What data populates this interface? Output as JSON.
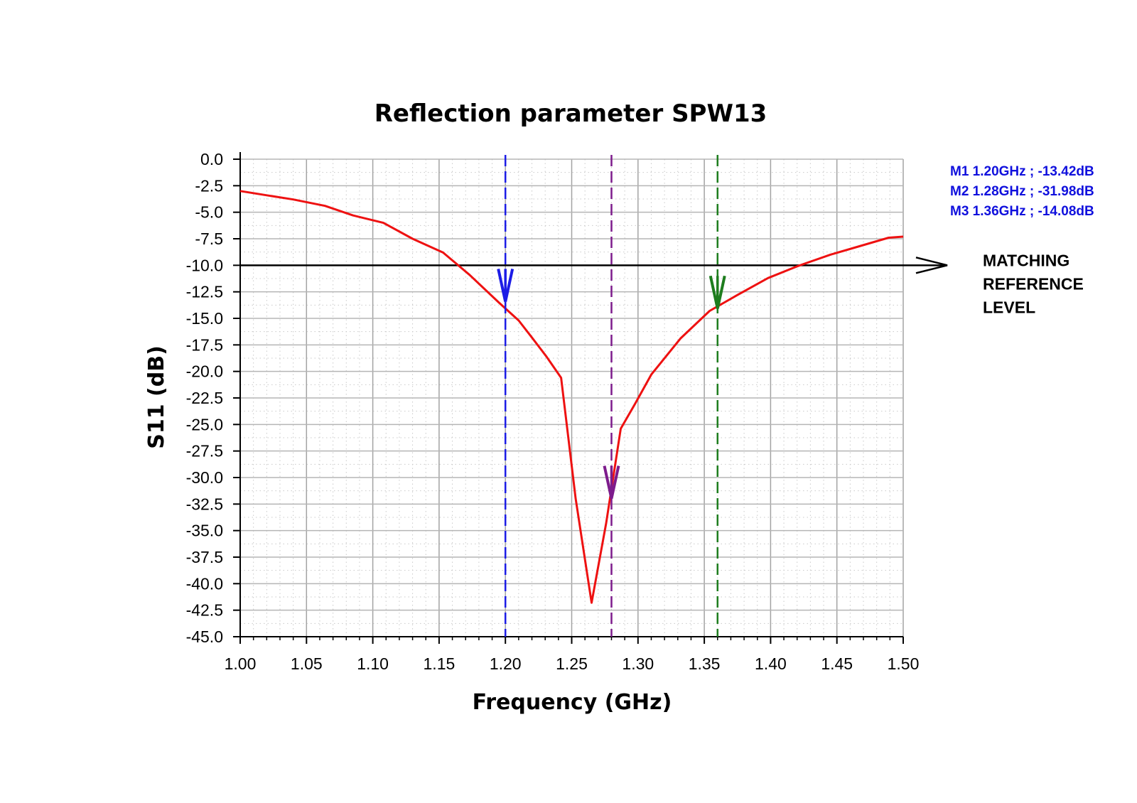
{
  "chart_data": {
    "type": "line",
    "title": "Reflection parameter SPW13",
    "xlabel": "Frequency (GHz)",
    "ylabel": "S11 (dB)",
    "xlim": [
      1.0,
      1.5
    ],
    "ylim": [
      -45.0,
      0.0
    ],
    "x_ticks": [
      "1.00",
      "1.05",
      "1.10",
      "1.15",
      "1.20",
      "1.25",
      "1.30",
      "1.35",
      "1.40",
      "1.45",
      "1.50"
    ],
    "y_ticks": [
      "0.0",
      "-2.5",
      "-5.0",
      "-7.5",
      "-10.0",
      "-12.5",
      "-15.0",
      "-17.5",
      "-20.0",
      "-22.5",
      "-25.0",
      "-27.5",
      "-30.0",
      "-32.5",
      "-35.0",
      "-37.5",
      "-40.0",
      "-42.5",
      "-45.0"
    ],
    "grid": true,
    "series": [
      {
        "color": "#ee1111",
        "x": [
          1.0,
          1.02,
          1.04,
          1.064,
          1.085,
          1.108,
          1.13,
          1.153,
          1.173,
          1.195,
          1.21,
          1.22,
          1.231,
          1.242,
          1.253,
          1.265,
          1.276,
          1.287,
          1.298,
          1.31,
          1.332,
          1.354,
          1.375,
          1.398,
          1.42,
          1.445,
          1.467,
          1.489,
          1.5
        ],
        "y": [
          -3.0,
          -3.4,
          -3.8,
          -4.4,
          -5.3,
          -6.0,
          -7.5,
          -8.8,
          -10.9,
          -13.5,
          -15.2,
          -16.8,
          -18.6,
          -20.6,
          -32.0,
          -41.8,
          -34.3,
          -25.4,
          -23.0,
          -20.3,
          -16.9,
          -14.3,
          -12.8,
          -11.2,
          -10.1,
          -9.0,
          -8.2,
          -7.4,
          -7.3
        ]
      }
    ],
    "reference_line": {
      "y": -10.0,
      "color": "#000000",
      "label_lines": [
        "MATCHING",
        "REFERENCE",
        "LEVEL"
      ]
    },
    "markers": [
      {
        "name": "M1",
        "x": 1.2,
        "y": -13.42,
        "color": "#1c1ce6",
        "label": "M1 1.20GHz ; -13.42dB"
      },
      {
        "name": "M2",
        "x": 1.28,
        "y": -31.98,
        "color": "#7d1c8c",
        "label": "M2 1.28GHz ; -31.98dB"
      },
      {
        "name": "M3",
        "x": 1.36,
        "y": -14.08,
        "color": "#1e7d1e",
        "label": "M3 1.36GHz ; -14.08dB"
      }
    ],
    "marker_text_color": "#1010dd"
  }
}
